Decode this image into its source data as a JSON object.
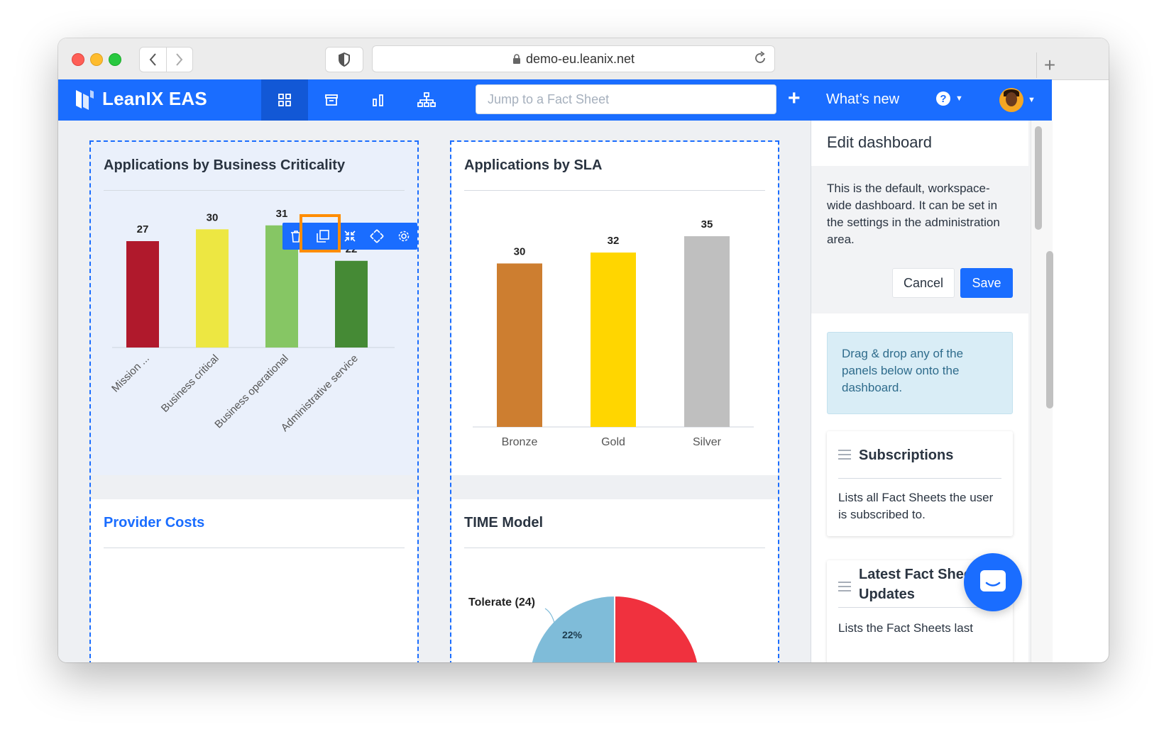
{
  "browser": {
    "url": "demo-eu.leanix.net"
  },
  "app": {
    "brand": "LeanIX EAS",
    "search_placeholder": "Jump to a Fact Sheet",
    "whats_new": "What’s new",
    "colors": {
      "primary": "#1a6dff",
      "highlight": "#ff8c00"
    }
  },
  "panels": {
    "criticality": {
      "title": "Applications by Business Criticality"
    },
    "sla": {
      "title": "Applications by SLA"
    },
    "provider": {
      "title": "Provider Costs"
    },
    "time": {
      "title": "TIME Model",
      "slice_label": "Tolerate (24)",
      "slice_pct": "22%"
    }
  },
  "chart_data": [
    {
      "type": "bar",
      "categories": [
        "Mission ...",
        "Business critical",
        "Business operational",
        "Administrative service"
      ],
      "values": [
        27,
        30,
        31,
        22
      ],
      "colors": [
        "#b0192c",
        "#ede742",
        "#86c664",
        "#458a35"
      ],
      "ylim": [
        0,
        36
      ]
    },
    {
      "type": "bar",
      "categories": [
        "Bronze",
        "Gold",
        "Silver"
      ],
      "values": [
        30,
        32,
        35
      ],
      "colors": [
        "#cd7e30",
        "#ffd600",
        "#bfbfbf"
      ],
      "ylim": [
        0,
        38
      ]
    },
    {
      "type": "pie",
      "categories": [
        "Tolerate (24)"
      ],
      "values": [
        22
      ],
      "colors": [
        "#7fbcd9",
        "#f0313e"
      ]
    }
  ],
  "sidebar": {
    "title": "Edit dashboard",
    "description": "This is the default, workspace-wide dashboard. It can be set in the settings in the administration area.",
    "cancel": "Cancel",
    "save": "Save",
    "hint": "Drag & drop any of the panels below onto the dashboard.",
    "cards": [
      {
        "title": "Subscriptions",
        "text": "Lists all Fact Sheets the user is subscribed to."
      },
      {
        "title": "Latest Fact Sheet Updates",
        "text": "Lists the Fact Sheets last"
      }
    ]
  }
}
